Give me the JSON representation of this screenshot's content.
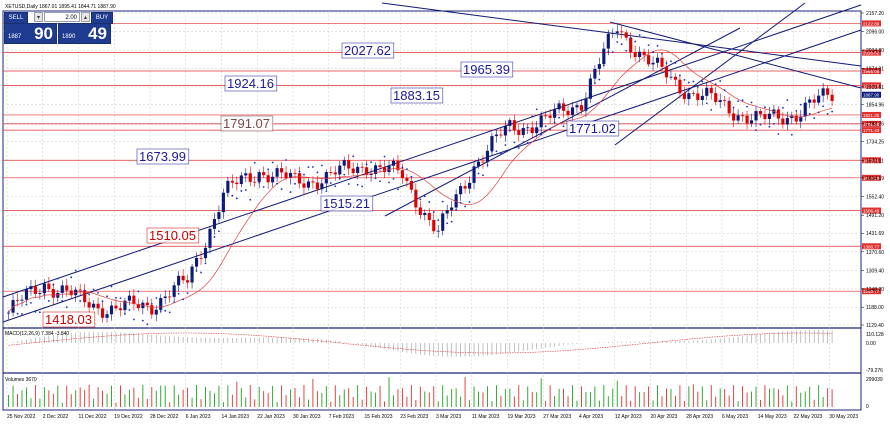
{
  "window": {
    "title": "XETUSD,Daily  1867.01 1895.41 1844.71 1887.90",
    "ohlc": {
      "open": 1867.01,
      "high": 1895.41,
      "low": 1844.71,
      "close": 1887.9
    }
  },
  "trade_panel": {
    "sell_label": "SELL",
    "buy_label": "BUY",
    "lot_value": "2.00",
    "sell_price_small": "1887",
    "sell_price_big": "90",
    "buy_price_small": "1890",
    "buy_price_big": "49"
  },
  "price_axis": {
    "ticks": [
      "2157.20",
      "2096.00",
      "2034.80",
      "1974.81",
      "1913.61",
      "1854.96",
      "1793.76",
      "1734.25",
      "1672.11",
      "1614.19",
      "1552.40",
      "1491.20",
      "1431.69",
      "1370.60",
      "1309.40",
      "1248.20",
      "1188.00",
      "1129.40"
    ],
    "current_price": "1887.90",
    "level_markers": [
      {
        "label": "2122.89",
        "color": "#e03030"
      },
      {
        "label": "2026.62",
        "color": "#e03030"
      },
      {
        "label": "1966.08",
        "color": "#e03030"
      },
      {
        "label": "1918.78",
        "color": "#e03030"
      },
      {
        "label": "1821.35",
        "color": "#e03030"
      },
      {
        "label": "1791.89",
        "color": "#e03030"
      },
      {
        "label": "1771.43",
        "color": "#e03030"
      },
      {
        "label": "1672.11",
        "color": "#e03030"
      },
      {
        "label": "1614.19",
        "color": "#e03030"
      },
      {
        "label": "1506.49",
        "color": "#e03030"
      },
      {
        "label": "1388.77",
        "color": "#e03030"
      },
      {
        "label": "1240.77",
        "color": "#e03030"
      }
    ]
  },
  "annotations": [
    "2027.62",
    "1965.39",
    "1924.16",
    "1883.15",
    "1791.07",
    "1771.02",
    "1673.99",
    "1515.21",
    "1510.05",
    "1418.03"
  ],
  "macd": {
    "label": "MACD(12,26,9) 7.384 -3.840",
    "ticks": [
      "110.128",
      "0.00",
      "-79.276"
    ]
  },
  "volumes": {
    "label": "Volumes 3670",
    "ticks": [
      "299039",
      "0"
    ]
  },
  "time_axis": {
    "labels": [
      "25 Nov 2022",
      "2 Dec 2022",
      "11 Dec 2022",
      "19 Dec 2022",
      "28 Dec 2022",
      "6 Jan 2023",
      "14 Jan 2023",
      "22 Jan 2023",
      "30 Jan 2023",
      "7 Feb 2023",
      "15 Feb 2023",
      "23 Feb 2023",
      "3 Mar 2023",
      "11 Mar 2023",
      "19 Mar 2023",
      "27 Mar 2023",
      "4 Apr 2023",
      "12 Apr 2023",
      "20 Apr 2023",
      "28 Apr 2023",
      "6 May 2023",
      "14 May 2023",
      "22 May 2023",
      "30 May 2023"
    ]
  },
  "colors": {
    "bull": "#0b1a7a",
    "bear": "#e00000",
    "trend": "#101a78",
    "level": "#e03030",
    "ma": "#e04040",
    "sar": "#1a30c0",
    "grid": "#c8c8c8",
    "panel_border": "#1a237e"
  },
  "chart_data": {
    "type": "candlestick",
    "title": "XETUSD,Daily",
    "ylim": [
      1129.4,
      2157.2
    ],
    "x": [
      "25 Nov 2022",
      "2 Dec 2022",
      "11 Dec 2022",
      "19 Dec 2022",
      "28 Dec 2022",
      "6 Jan 2023",
      "14 Jan 2023",
      "22 Jan 2023",
      "30 Jan 2023",
      "7 Feb 2023",
      "15 Feb 2023",
      "23 Feb 2023",
      "3 Mar 2023",
      "11 Mar 2023",
      "19 Mar 2023",
      "27 Mar 2023",
      "4 Apr 2023",
      "12 Apr 2023",
      "20 Apr 2023",
      "28 Apr 2023",
      "6 May 2023",
      "14 May 2023",
      "22 May 2023",
      "30 May 2023"
    ],
    "series": [
      {
        "name": "close",
        "values": [
          1170,
          1270,
          1210,
          1180,
          1200,
          1270,
          1560,
          1640,
          1600,
          1620,
          1660,
          1620,
          1430,
          1660,
          1780,
          1800,
          1870,
          2110,
          1980,
          1900,
          1850,
          1800,
          1830,
          1887.9
        ]
      }
    ]
  }
}
